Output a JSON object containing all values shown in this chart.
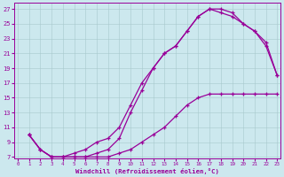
{
  "bg_color": "#cce8ee",
  "line_color": "#990099",
  "grid_color": "#a8c8cc",
  "xlabel": "Windchill (Refroidissement éolien,°C)",
  "xlim": [
    -0.3,
    23.3
  ],
  "ylim": [
    6.8,
    27.8
  ],
  "xticks": [
    0,
    1,
    2,
    3,
    4,
    5,
    6,
    7,
    8,
    9,
    10,
    11,
    12,
    13,
    14,
    15,
    16,
    17,
    18,
    19,
    20,
    21,
    22,
    23
  ],
  "yticks": [
    7,
    9,
    11,
    13,
    15,
    17,
    19,
    21,
    23,
    25,
    27
  ],
  "curve_upper_x": [
    1,
    2,
    3,
    4,
    5,
    6,
    7,
    8,
    9,
    10,
    11,
    12,
    13,
    14,
    15,
    16,
    17,
    18,
    19,
    20,
    21,
    22,
    23
  ],
  "curve_upper_y": [
    10,
    8,
    7,
    7,
    7,
    7,
    7.5,
    8,
    9.5,
    13,
    16,
    19,
    21,
    22,
    24,
    26,
    27,
    27,
    26.5,
    25,
    24,
    22.5,
    18
  ],
  "curve_mid_x": [
    1,
    2,
    3,
    4,
    5,
    6,
    7,
    8,
    9,
    10,
    11,
    12,
    13,
    14,
    15,
    16,
    17,
    18,
    19,
    20,
    21,
    22,
    23
  ],
  "curve_mid_y": [
    10,
    8,
    7,
    7,
    7.5,
    8,
    9,
    9.5,
    11,
    14,
    17,
    19,
    21,
    22,
    24,
    26,
    27,
    26.5,
    26,
    25,
    24,
    22,
    18
  ],
  "curve_lower_x": [
    1,
    2,
    3,
    4,
    5,
    6,
    7,
    8,
    9,
    10,
    11,
    12,
    13,
    14,
    15,
    16,
    17,
    18,
    19,
    20,
    21,
    22,
    23
  ],
  "curve_lower_y": [
    10,
    8,
    7,
    7,
    7,
    7,
    7,
    7,
    7.5,
    8,
    9,
    10,
    11,
    12.5,
    14,
    15,
    15.5,
    15.5,
    15.5,
    15.5,
    15.5,
    15.5,
    15.5
  ]
}
